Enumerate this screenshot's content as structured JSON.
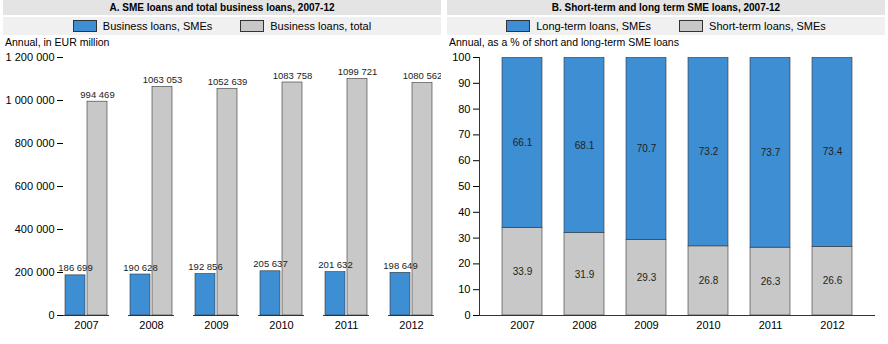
{
  "chart_data": [
    {
      "type": "bar",
      "title": "A. SME loans and total business loans, 2007-12",
      "y_label": "Annual, in EUR million",
      "categories": [
        "2007",
        "2008",
        "2009",
        "2010",
        "2011",
        "2012"
      ],
      "series": [
        {
          "name": "Business loans, SMEs",
          "color": "#3d8ed3",
          "values": [
            186699,
            190628,
            192856,
            205637,
            201632,
            198649
          ],
          "value_labels": [
            "186 699",
            "190 628",
            "192 856",
            "205 637",
            "201 632",
            "198 649"
          ]
        },
        {
          "name": "Business loans, total",
          "color": "#c8c8c8",
          "values": [
            994469,
            1063053,
            1052639,
            1083758,
            1099721,
            1080562
          ],
          "value_labels": [
            "994 469",
            "1063 053",
            "1052 639",
            "1083 758",
            "1099 721",
            "1080 562"
          ]
        }
      ],
      "ylim": [
        0,
        1200000
      ],
      "yticks": [
        0,
        {
          "value": 200000,
          "label": "200 000"
        },
        {
          "value": 400000,
          "label": "400 000"
        },
        {
          "value": 600000,
          "label": "600 000"
        },
        {
          "value": 800000,
          "label": "800 000"
        },
        {
          "value": 1000000,
          "label": "1 000 000"
        },
        {
          "value": 1200000,
          "label": "1 200 000"
        }
      ],
      "stacked": false,
      "grid": false,
      "legend": "top",
      "data_labels": true
    },
    {
      "type": "bar",
      "title": "B. Short-term and long term SME loans, 2007-12",
      "y_label": "Annual, as a % of short and long-term SME loans",
      "categories": [
        "2007",
        "2008",
        "2009",
        "2010",
        "2011",
        "2012"
      ],
      "series": [
        {
          "name": "Long-term loans, SMEs",
          "color": "#3d8ed3",
          "values": [
            66.1,
            68.1,
            70.7,
            73.2,
            73.7,
            73.4
          ]
        },
        {
          "name": "Short-term loans, SMEs",
          "color": "#c8c8c8",
          "values": [
            33.9,
            31.9,
            29.3,
            26.8,
            26.3,
            26.6
          ]
        }
      ],
      "ylim": [
        0,
        100
      ],
      "yticks": [
        0,
        10,
        20,
        30,
        40,
        50,
        60,
        70,
        80,
        90,
        100
      ],
      "stacked": true,
      "grid": false,
      "legend": "top",
      "data_labels": true
    }
  ]
}
